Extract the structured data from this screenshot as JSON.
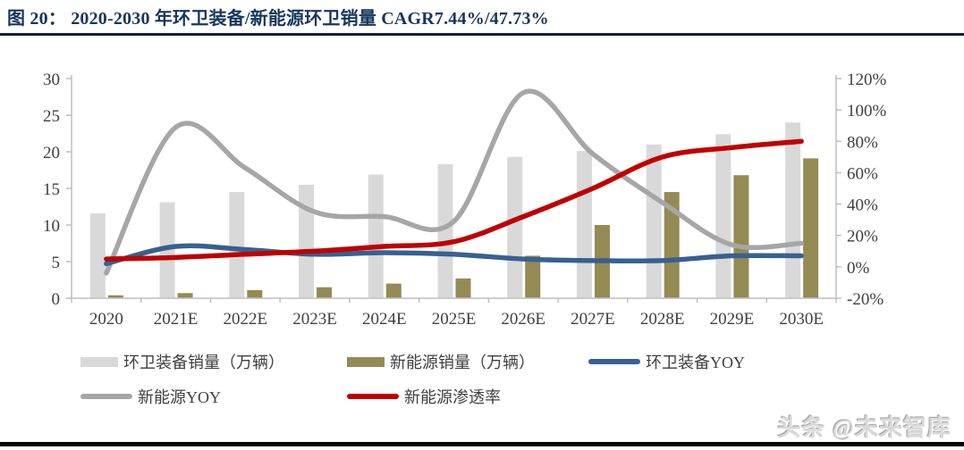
{
  "header": {
    "title": "图 20：  2020-2030 年环卫装备/新能源环卫销量 CAGR7.44%/47.73%"
  },
  "watermark": {
    "text": "头条 @未来智库"
  },
  "colors": {
    "title": "#17365d",
    "title_rule": "#121f38",
    "bottom_rule": "#000000",
    "axis_line": "#bfbfbf",
    "tick_label": "#404040",
    "bar_sanitation": "#d9d9d9",
    "bar_new_energy": "#948a54",
    "line_sanitation_yoy": "#376092",
    "line_new_energy_yoy": "#a6a6a6",
    "line_penetration": "#c00000"
  },
  "chart_data": {
    "type": "bar",
    "subtype": "combo-bar-line-dual-axis",
    "title": "2020-2030 年环卫装备/新能源环卫销量 CAGR7.44%/47.73%",
    "categories": [
      "2020",
      "2021E",
      "2022E",
      "2023E",
      "2024E",
      "2025E",
      "2026E",
      "2027E",
      "2028E",
      "2029E",
      "2030E"
    ],
    "series": [
      {
        "name": "环卫装备销量（万辆）",
        "kind": "bar",
        "axis": "left",
        "color": "#d9d9d9",
        "values": [
          11.6,
          13.1,
          14.5,
          15.5,
          16.9,
          18.3,
          19.3,
          20.1,
          21.0,
          22.4,
          24.0
        ]
      },
      {
        "name": "新能源销量（万辆）",
        "kind": "bar",
        "axis": "left",
        "color": "#948a54",
        "values": [
          0.4,
          0.7,
          1.1,
          1.5,
          2.0,
          2.7,
          5.8,
          10.0,
          14.5,
          16.8,
          19.1
        ]
      },
      {
        "name": "环卫装备YOY",
        "kind": "line",
        "axis": "right",
        "color": "#376092",
        "values": [
          2,
          13,
          11,
          8,
          9,
          8,
          5,
          4,
          4,
          7,
          7
        ]
      },
      {
        "name": "新能源YOY",
        "kind": "line",
        "axis": "right",
        "color": "#a6a6a6",
        "values": [
          -4,
          89,
          63,
          35,
          32,
          29,
          111,
          72,
          41,
          14,
          15
        ]
      },
      {
        "name": "新能源渗透率",
        "kind": "line",
        "axis": "right",
        "color": "#c00000",
        "values": [
          5,
          6,
          8,
          10,
          13,
          16,
          32,
          50,
          70,
          76,
          80
        ]
      }
    ],
    "left_axis": {
      "min": 0,
      "max": 30,
      "step": 5,
      "ticks": [
        "0",
        "5",
        "10",
        "15",
        "20",
        "25",
        "30"
      ]
    },
    "right_axis": {
      "min": -20,
      "max": 120,
      "step": 20,
      "unit": "%",
      "ticks": [
        "-20%",
        "0%",
        "20%",
        "40%",
        "60%",
        "80%",
        "100%",
        "120%"
      ]
    },
    "grid": false,
    "legend_position": "bottom"
  }
}
